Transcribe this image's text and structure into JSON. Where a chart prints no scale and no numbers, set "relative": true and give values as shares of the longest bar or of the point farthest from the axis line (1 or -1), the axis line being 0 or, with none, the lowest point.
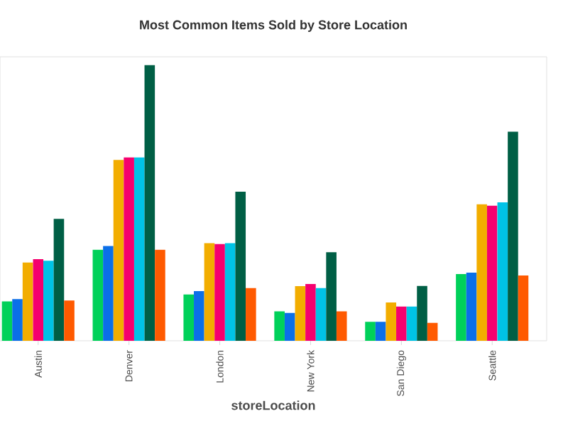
{
  "chart_data": {
    "type": "bar",
    "title": "Most Common Items Sold by Store Location",
    "xlabel": "storeLocation",
    "relative": true,
    "categories": [
      "Austin",
      "Denver",
      "London",
      "New York",
      "San Diego",
      "Seattle"
    ],
    "series": [
      {
        "color": "#00d15a",
        "values": [
          0.143,
          0.33,
          0.168,
          0.107,
          0.069,
          0.242
        ]
      },
      {
        "color": "#0b6fe8",
        "values": [
          0.151,
          0.344,
          0.18,
          0.101,
          0.069,
          0.247
        ]
      },
      {
        "color": "#f2ad00",
        "values": [
          0.284,
          0.656,
          0.354,
          0.198,
          0.139,
          0.495
        ]
      },
      {
        "color": "#f5006e",
        "values": [
          0.296,
          0.665,
          0.351,
          0.206,
          0.124,
          0.49
        ]
      },
      {
        "color": "#00c3e6",
        "values": [
          0.29,
          0.665,
          0.354,
          0.191,
          0.124,
          0.502
        ]
      },
      {
        "color": "#005f45",
        "values": [
          0.442,
          1,
          0.541,
          0.321,
          0.199,
          0.758
        ]
      },
      {
        "color": "#ff5a00",
        "values": [
          0.146,
          0.33,
          0.191,
          0.107,
          0.065,
          0.237
        ]
      }
    ]
  }
}
